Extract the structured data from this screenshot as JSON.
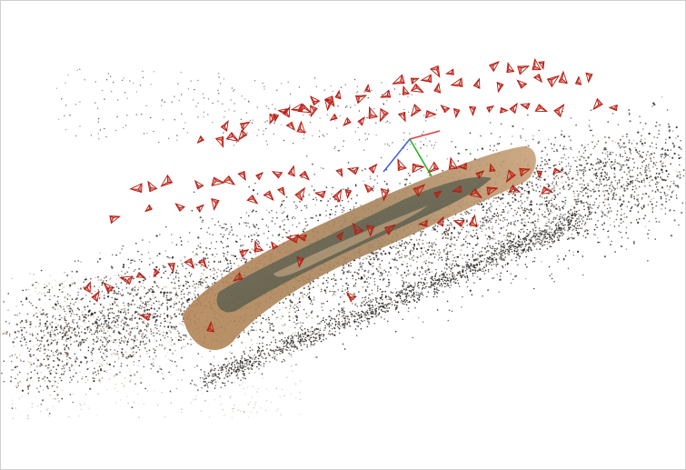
{
  "viewer": {
    "background_color": "#ffffff",
    "point_cloud": {
      "dark_point_color": "#2b2622",
      "mid_point_color": "#7a6a5a",
      "light_point_color": "#b89a7c"
    },
    "log_mesh": {
      "bark_color": "#b5875a",
      "bark_light_color": "#c9a27a",
      "wood_dark_color": "#3c4236",
      "wood_gray_color": "#6b7263"
    },
    "camera_frustums": {
      "color": "#e02a1d",
      "stroke_color": "#b31b10",
      "count_visible": 170
    },
    "axes_gizmo": {
      "x_axis_color": "#e04040",
      "y_axis_color": "#20b020",
      "z_axis_color": "#4060e0"
    }
  }
}
